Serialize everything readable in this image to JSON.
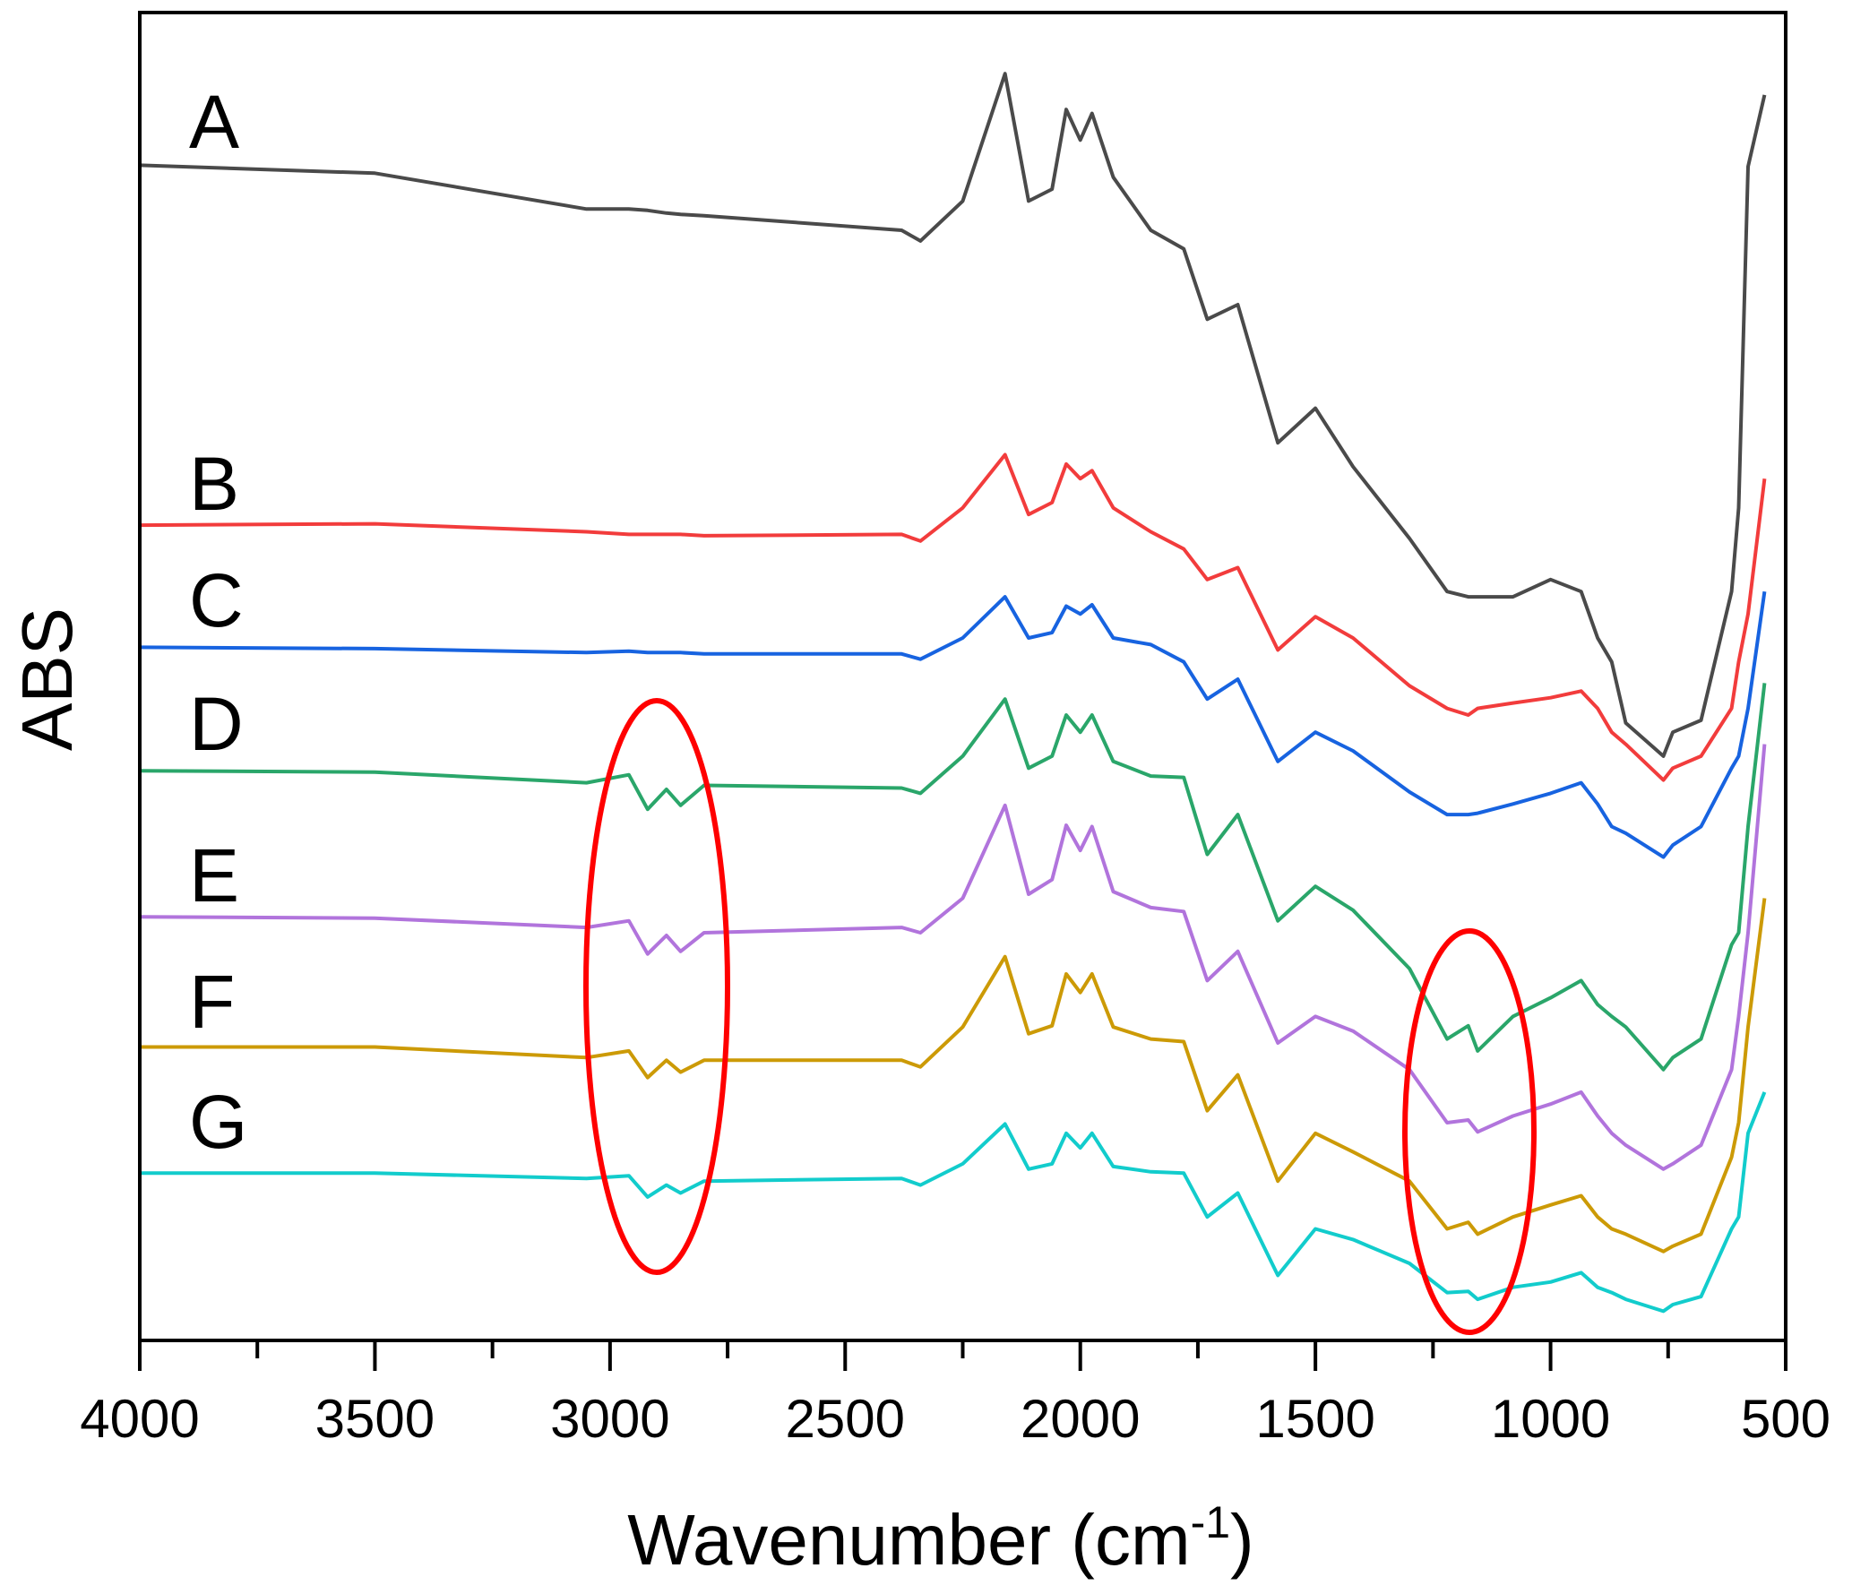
{
  "chart_data": {
    "type": "line",
    "title": "",
    "xlabel": "Wavenumber (cm",
    "xlabel_sup": "-1",
    "xlabel_close": ")",
    "ylabel": "ABS",
    "xlim": [
      4000,
      500
    ],
    "ylim": [
      0,
      100
    ],
    "x_reversed": true,
    "grid": false,
    "xticks": [
      4000,
      3500,
      3000,
      2500,
      2000,
      1500,
      1000,
      500
    ],
    "xtick_labels": [
      "4000",
      "3500",
      "3000",
      "2500",
      "2000",
      "1500",
      "1000",
      "500"
    ],
    "x_minor_ticks": [
      3750,
      3250,
      2750,
      2250,
      1750,
      1250,
      750
    ],
    "x": [
      4000,
      3500,
      3050,
      2960,
      2920,
      2880,
      2850,
      2800,
      2380,
      2340,
      2250,
      2160,
      2110,
      2060,
      2030,
      2000,
      1975,
      1930,
      1850,
      1780,
      1730,
      1665,
      1580,
      1500,
      1420,
      1300,
      1220,
      1175,
      1155,
      1080,
      1000,
      935,
      900,
      870,
      840,
      760,
      740,
      680,
      615,
      600,
      580,
      545
    ],
    "series": [
      {
        "name": "A",
        "color": "#4a4a4a",
        "values": [
          88.5,
          87.9,
          85.2,
          85.2,
          85.1,
          84.9,
          84.8,
          84.7,
          83.6,
          82.8,
          85.8,
          95.4,
          85.8,
          86.7,
          92.7,
          90.4,
          92.4,
          87.6,
          83.6,
          82.2,
          76.9,
          78.0,
          67.6,
          70.2,
          65.8,
          60.4,
          56.4,
          56.0,
          56.0,
          56.0,
          57.3,
          56.4,
          52.9,
          51.1,
          46.5,
          44.0,
          45.8,
          46.7,
          56.4,
          62.7,
          88.4,
          93.8
        ]
      },
      {
        "name": "B",
        "color": "#f23c3c",
        "values": [
          61.4,
          61.5,
          60.9,
          60.7,
          60.7,
          60.7,
          60.7,
          60.6,
          60.7,
          60.2,
          62.7,
          66.7,
          62.2,
          63.1,
          66.0,
          64.9,
          65.5,
          62.7,
          60.9,
          59.6,
          57.3,
          58.2,
          52.0,
          54.5,
          52.9,
          49.3,
          47.6,
          47.1,
          47.6,
          48.0,
          48.4,
          48.9,
          47.6,
          45.8,
          44.9,
          42.2,
          43.1,
          44.0,
          47.6,
          51.1,
          54.7,
          64.9
        ]
      },
      {
        "name": "C",
        "color": "#1763e0",
        "values": [
          52.2,
          52.1,
          51.8,
          51.9,
          51.8,
          51.8,
          51.8,
          51.7,
          51.7,
          51.3,
          52.9,
          56.0,
          52.9,
          53.3,
          55.3,
          54.7,
          55.4,
          52.9,
          52.4,
          51.1,
          48.3,
          49.8,
          43.6,
          45.8,
          44.4,
          41.3,
          39.6,
          39.6,
          39.7,
          40.4,
          41.2,
          42.0,
          40.4,
          38.7,
          38.2,
          36.4,
          37.3,
          38.7,
          43.1,
          44.0,
          47.6,
          56.4
        ]
      },
      {
        "name": "D",
        "color": "#2aa66a",
        "values": [
          42.9,
          42.8,
          42.0,
          42.6,
          40.0,
          41.5,
          40.3,
          41.8,
          41.6,
          41.2,
          44.0,
          48.3,
          43.1,
          44.0,
          47.1,
          45.8,
          47.1,
          43.6,
          42.5,
          42.4,
          36.6,
          39.6,
          31.6,
          34.2,
          32.4,
          28.0,
          22.7,
          23.7,
          21.8,
          24.4,
          25.8,
          27.1,
          25.3,
          24.4,
          23.6,
          20.4,
          21.3,
          22.7,
          29.8,
          30.7,
          38.7,
          49.5
        ]
      },
      {
        "name": "E",
        "color": "#b174dc",
        "values": [
          31.9,
          31.8,
          31.1,
          31.6,
          29.1,
          30.5,
          29.3,
          30.7,
          31.1,
          30.7,
          33.3,
          40.3,
          33.6,
          34.7,
          38.8,
          36.9,
          38.7,
          33.8,
          32.6,
          32.3,
          27.1,
          29.3,
          22.4,
          24.4,
          23.3,
          20.4,
          16.4,
          16.6,
          15.7,
          16.9,
          17.8,
          18.7,
          16.9,
          15.6,
          14.7,
          12.9,
          13.3,
          14.7,
          20.4,
          24.4,
          30.7,
          44.9
        ]
      },
      {
        "name": "F",
        "color": "#cc9a06",
        "values": [
          22.1,
          22.1,
          21.3,
          21.8,
          19.8,
          21.1,
          20.2,
          21.1,
          21.1,
          20.6,
          23.6,
          28.9,
          23.1,
          23.7,
          27.6,
          26.2,
          27.6,
          23.6,
          22.7,
          22.5,
          17.3,
          20.0,
          12.0,
          15.6,
          14.2,
          12.0,
          8.4,
          8.9,
          8.0,
          9.3,
          10.2,
          10.9,
          9.3,
          8.4,
          8.0,
          6.7,
          7.1,
          8.0,
          13.8,
          16.4,
          23.6,
          33.3
        ]
      },
      {
        "name": "G",
        "color": "#12cccc",
        "values": [
          12.6,
          12.6,
          12.2,
          12.4,
          10.8,
          11.7,
          11.1,
          12.0,
          12.2,
          11.7,
          13.3,
          16.3,
          12.9,
          13.3,
          15.6,
          14.5,
          15.6,
          13.1,
          12.7,
          12.6,
          9.3,
          11.1,
          4.9,
          8.4,
          7.6,
          5.8,
          3.6,
          3.7,
          3.1,
          4.0,
          4.4,
          5.1,
          4.0,
          3.6,
          3.1,
          2.2,
          2.7,
          3.3,
          8.4,
          9.3,
          15.6,
          18.7
        ]
      }
    ],
    "annotations": [
      {
        "type": "ellipse",
        "color": "#ff0000",
        "note": "highlights 2920/2850 region of D-G"
      },
      {
        "type": "ellipse",
        "color": "#ff0000",
        "note": "highlights ~1175 region of D-G"
      }
    ]
  }
}
